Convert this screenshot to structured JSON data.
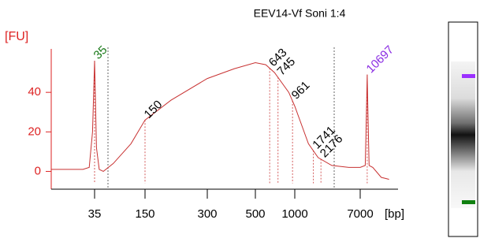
{
  "chart_data": {
    "type": "line",
    "title": "EEV14-Vf Soni 1:4",
    "ylabel": "[FU]",
    "xlabel": "[bp]",
    "ylim": [
      -9,
      62
    ],
    "yticks": [
      0,
      20,
      40
    ],
    "xticks": [
      35,
      150,
      300,
      500,
      1000,
      7000
    ],
    "x": [
      10,
      25,
      30,
      33,
      35,
      37,
      40,
      45,
      60,
      100,
      150,
      200,
      300,
      400,
      500,
      600,
      700,
      900,
      1000,
      1500,
      2000,
      3000,
      5000,
      7000,
      9500,
      10200,
      10697,
      11200,
      12000,
      15000,
      25000,
      40000
    ],
    "series": [
      {
        "color": "#c83232",
        "values": [
          1,
          1,
          2,
          20,
          56,
          12,
          1,
          0,
          4,
          14,
          26,
          36,
          47,
          52,
          55,
          54,
          50,
          40,
          33,
          14,
          7,
          3,
          2,
          2,
          3,
          30,
          49,
          28,
          3,
          2,
          -3,
          -4
        ]
      }
    ],
    "peaks": {
      "x": [
        35,
        150,
        643,
        745,
        961,
        1741,
        2176,
        10697
      ],
      "colors": [
        "#1a7a1a",
        "#000000",
        "#000000",
        "#000000",
        "#000000",
        "#000000",
        "#000000",
        "#8a2be2"
      ]
    }
  }
}
